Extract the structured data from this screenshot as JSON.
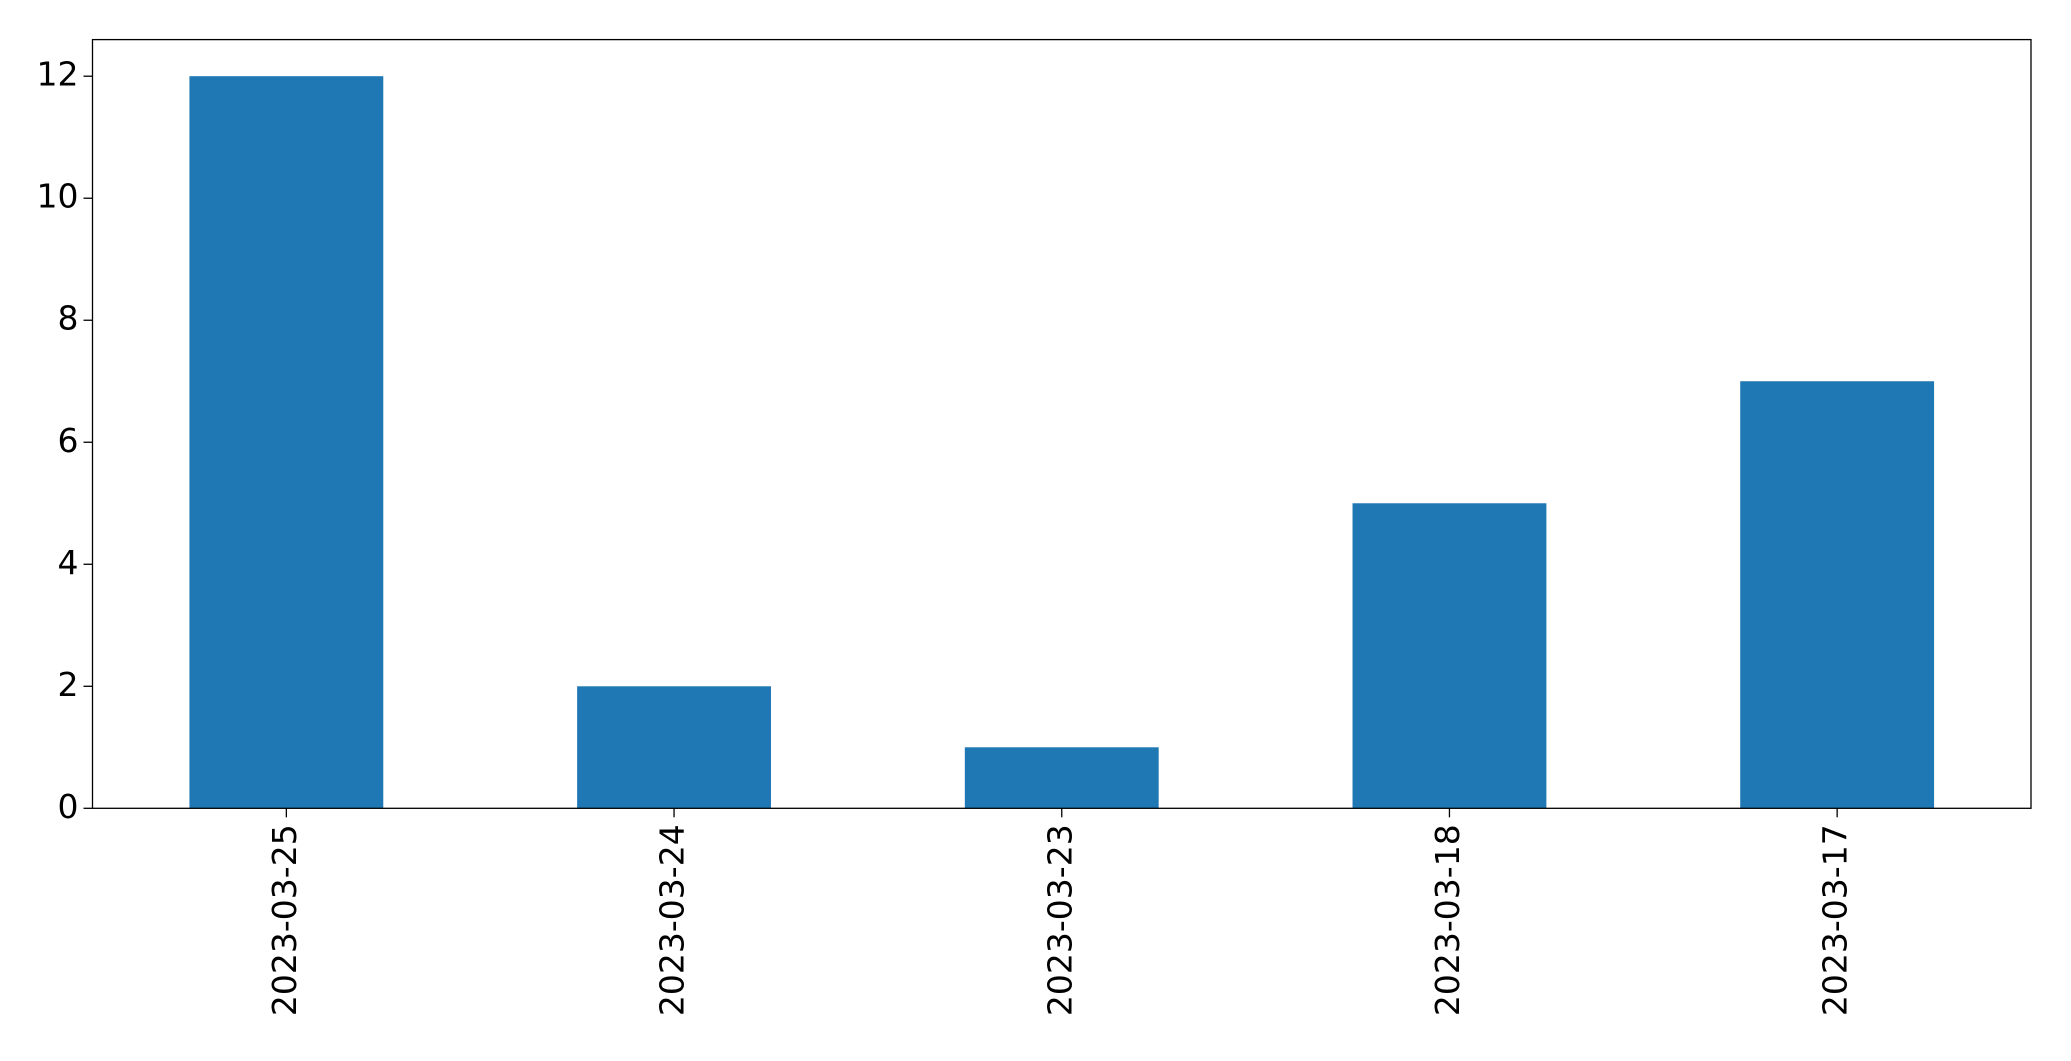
{
  "chart_data": {
    "type": "bar",
    "categories": [
      "2023-03-25",
      "2023-03-24",
      "2023-03-23",
      "2023-03-18",
      "2023-03-17"
    ],
    "values": [
      12,
      2,
      1,
      5,
      7
    ],
    "color": "#1f77b4",
    "ylim": [
      0,
      12.6
    ],
    "yticks": [
      0,
      2,
      4,
      6,
      8,
      10,
      12
    ],
    "grid": false
  }
}
